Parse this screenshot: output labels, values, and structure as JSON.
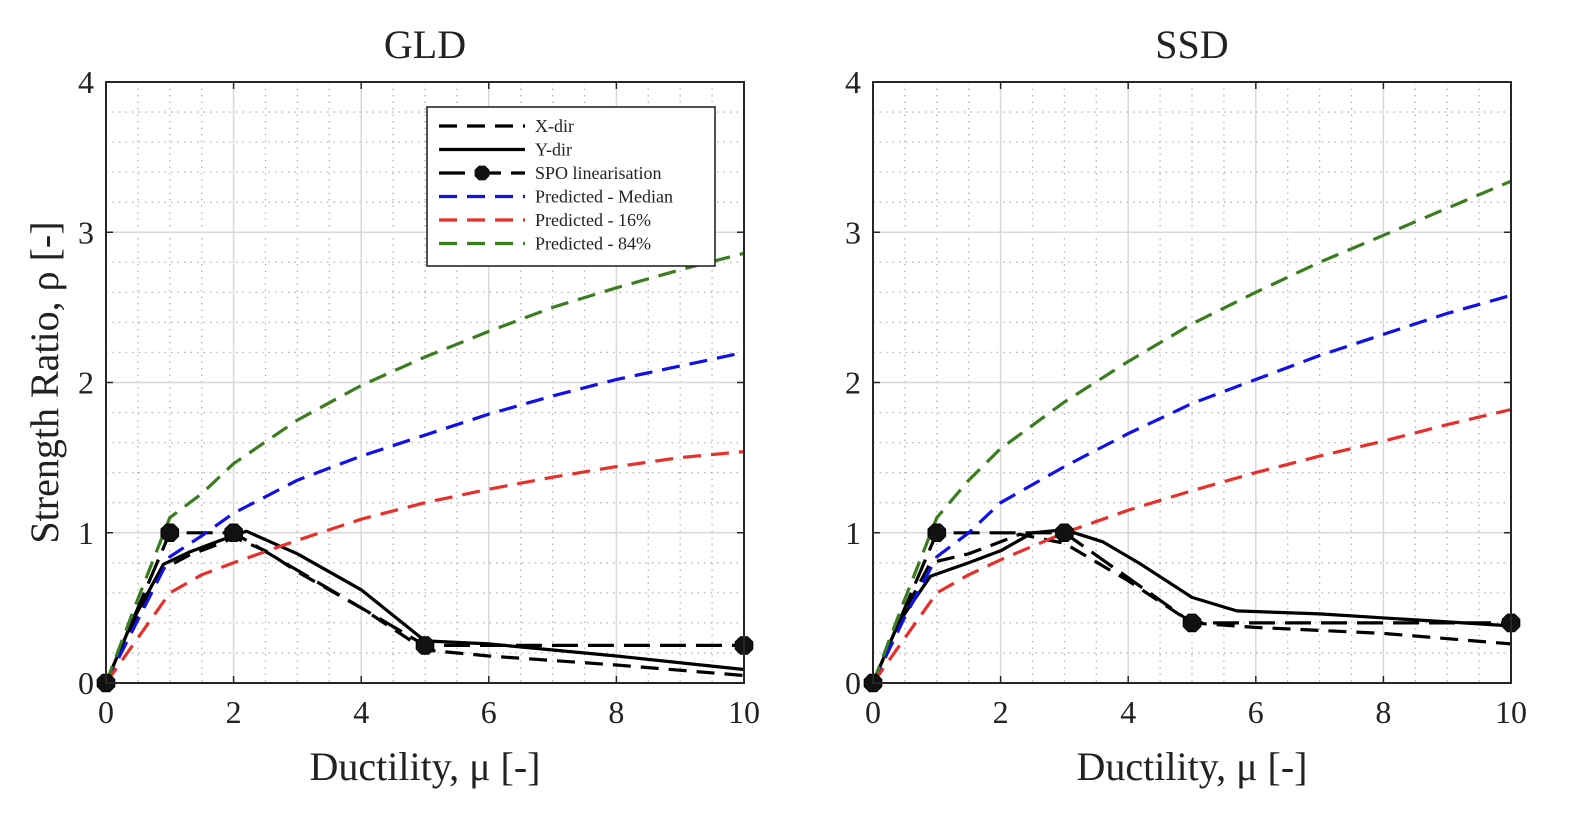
{
  "chart_data": [
    {
      "type": "line",
      "title": "GLD",
      "xlabel": "Ductility, μ [-]",
      "ylabel": "Strength Ratio, ρ [-]",
      "xlim": [
        0,
        10
      ],
      "ylim": [
        0,
        4
      ],
      "xticks": [
        0,
        2,
        4,
        6,
        8,
        10
      ],
      "yticks": [
        0,
        1,
        2,
        3,
        4
      ],
      "grid": true,
      "minor_grid": true,
      "legend": {
        "placement": "top-right",
        "entries": [
          "X-dir",
          "Y-dir",
          "SPO linearisation",
          "Predicted - Median",
          "Predicted - 16%",
          "Predicted - 84%"
        ]
      },
      "series": [
        {
          "name": "X-dir",
          "color": "#000000",
          "dash": "dashed",
          "x": [
            0,
            0.4,
            0.9,
            1.3,
            1.8,
            2.0,
            2.5,
            3.0,
            3.5,
            4.0,
            5.0,
            6.0,
            8.0,
            10.0
          ],
          "y": [
            0,
            0.38,
            0.76,
            0.85,
            0.93,
            0.97,
            0.88,
            0.74,
            0.62,
            0.5,
            0.22,
            0.18,
            0.12,
            0.05
          ]
        },
        {
          "name": "Y-dir",
          "color": "#000000",
          "dash": "solid",
          "x": [
            0,
            0.4,
            0.9,
            1.3,
            1.8,
            2.2,
            3.0,
            4.0,
            5.0,
            6.0,
            8.0,
            10.0
          ],
          "y": [
            0,
            0.4,
            0.79,
            0.87,
            0.95,
            1.01,
            0.86,
            0.62,
            0.28,
            0.26,
            0.18,
            0.09
          ]
        },
        {
          "name": "SPO linearisation",
          "color": "#000000",
          "dash": "long-dashed",
          "markers": true,
          "x": [
            0,
            1,
            2,
            5,
            10
          ],
          "y": [
            0,
            1.0,
            1.0,
            0.25,
            0.25
          ]
        },
        {
          "name": "Predicted - Median",
          "color": "#1010e8",
          "dash": "dashed",
          "x": [
            0,
            0.5,
            1,
            1.5,
            2,
            3,
            4,
            5,
            6,
            7,
            8,
            9,
            10
          ],
          "y": [
            0,
            0.42,
            0.84,
            0.98,
            1.13,
            1.35,
            1.51,
            1.65,
            1.79,
            1.91,
            2.02,
            2.11,
            2.2
          ]
        },
        {
          "name": "Predicted - 16%",
          "color": "#e8302b",
          "dash": "dashed",
          "x": [
            0,
            0.5,
            1,
            1.5,
            2,
            3,
            4,
            5,
            6,
            7,
            8,
            9,
            10
          ],
          "y": [
            0,
            0.3,
            0.6,
            0.72,
            0.8,
            0.95,
            1.09,
            1.2,
            1.29,
            1.37,
            1.44,
            1.5,
            1.54
          ]
        },
        {
          "name": "Predicted - 84%",
          "color": "#3a7d1e",
          "dash": "dashed",
          "x": [
            0,
            0.5,
            1,
            1.5,
            2,
            3,
            4,
            5,
            6,
            7,
            8,
            9,
            10
          ],
          "y": [
            0,
            0.56,
            1.1,
            1.26,
            1.46,
            1.75,
            1.98,
            2.17,
            2.34,
            2.5,
            2.63,
            2.75,
            2.86
          ]
        }
      ]
    },
    {
      "type": "line",
      "title": "SSD",
      "xlabel": "Ductility, μ [-]",
      "ylabel": "",
      "xlim": [
        0,
        10
      ],
      "ylim": [
        0,
        4
      ],
      "xticks": [
        0,
        2,
        4,
        6,
        8,
        10
      ],
      "yticks": [
        0,
        1,
        2,
        3,
        4
      ],
      "grid": true,
      "minor_grid": true,
      "series": [
        {
          "name": "X-dir",
          "color": "#000000",
          "dash": "dashed",
          "x": [
            0,
            0.4,
            0.9,
            1.5,
            2.0,
            2.3,
            3.0,
            4.0,
            5.0,
            6.0,
            8.0,
            10.0
          ],
          "y": [
            0,
            0.4,
            0.8,
            0.86,
            0.94,
            0.99,
            0.93,
            0.68,
            0.4,
            0.37,
            0.33,
            0.26
          ]
        },
        {
          "name": "Y-dir",
          "color": "#000000",
          "dash": "solid",
          "x": [
            0,
            0.4,
            0.9,
            1.5,
            2.0,
            2.5,
            3.0,
            3.6,
            4.2,
            5.0,
            5.7,
            7.0,
            8.5,
            10.0
          ],
          "y": [
            0,
            0.4,
            0.71,
            0.8,
            0.88,
            1.0,
            1.02,
            0.94,
            0.79,
            0.57,
            0.48,
            0.46,
            0.42,
            0.38
          ]
        },
        {
          "name": "SPO linearisation",
          "color": "#000000",
          "dash": "long-dashed",
          "markers": true,
          "x": [
            0,
            1,
            3,
            5,
            10
          ],
          "y": [
            0,
            1.0,
            1.0,
            0.4,
            0.4
          ]
        },
        {
          "name": "Predicted - Median",
          "color": "#1010e8",
          "dash": "dashed",
          "x": [
            0,
            0.5,
            1,
            1.5,
            2,
            3,
            4,
            5,
            6,
            7,
            8,
            9,
            10
          ],
          "y": [
            0,
            0.44,
            0.84,
            1.0,
            1.2,
            1.44,
            1.66,
            1.86,
            2.02,
            2.18,
            2.32,
            2.46,
            2.58
          ]
        },
        {
          "name": "Predicted - 16%",
          "color": "#e8302b",
          "dash": "dashed",
          "x": [
            0,
            0.5,
            1,
            1.5,
            2,
            3,
            4,
            5,
            6,
            7,
            8,
            9,
            10
          ],
          "y": [
            0,
            0.3,
            0.6,
            0.72,
            0.82,
            1.0,
            1.15,
            1.28,
            1.4,
            1.51,
            1.61,
            1.72,
            1.82
          ]
        },
        {
          "name": "Predicted - 84%",
          "color": "#3a7d1e",
          "dash": "dashed",
          "x": [
            0,
            0.5,
            1,
            1.5,
            2,
            3,
            4,
            5,
            6,
            7,
            8,
            9,
            10
          ],
          "y": [
            0,
            0.56,
            1.1,
            1.35,
            1.56,
            1.87,
            2.14,
            2.39,
            2.6,
            2.8,
            2.98,
            3.16,
            3.34
          ]
        }
      ]
    }
  ]
}
